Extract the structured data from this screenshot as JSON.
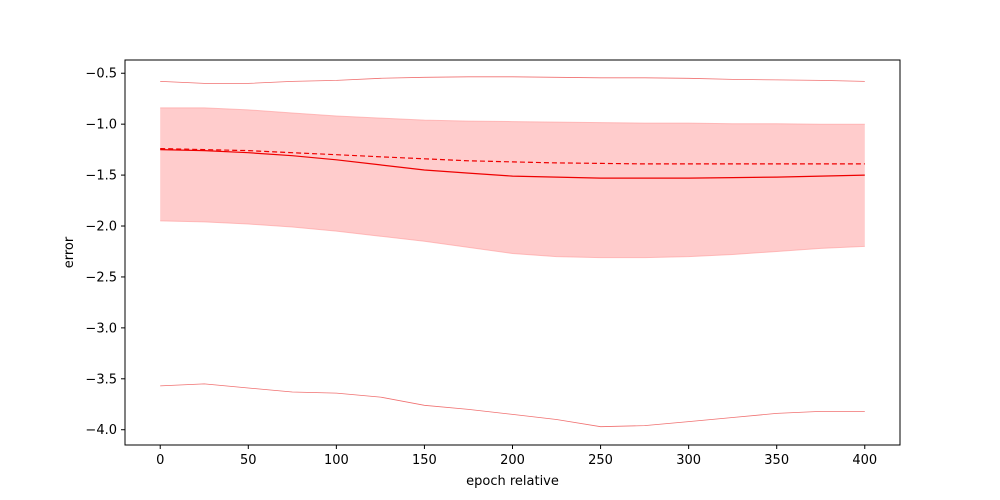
{
  "chart_data": {
    "type": "line",
    "xlabel": "epoch relative",
    "ylabel": "error",
    "xlim": [
      -20,
      420
    ],
    "ylim": [
      -4.15,
      -0.37
    ],
    "grid": false,
    "x_ticks": [
      0,
      50,
      100,
      150,
      200,
      250,
      300,
      350,
      400
    ],
    "y_ticks": [
      -4.0,
      -3.5,
      -3.0,
      -2.5,
      -2.0,
      -1.5,
      -1.0,
      -0.5
    ],
    "x_tick_labels": [
      "0",
      "50",
      "100",
      "150",
      "200",
      "250",
      "300",
      "350",
      "400"
    ],
    "y_tick_labels": [
      "−4.0",
      "−3.5",
      "−3.0",
      "−2.5",
      "−2.0",
      "−1.5",
      "−1.0",
      "−0.5"
    ],
    "x": [
      0,
      25,
      50,
      75,
      100,
      125,
      150,
      175,
      200,
      225,
      250,
      275,
      300,
      325,
      350,
      375,
      400
    ],
    "series": [
      {
        "role": "mean",
        "style": "solid",
        "color": "#ee0000",
        "values": [
          -1.25,
          -1.26,
          -1.28,
          -1.31,
          -1.35,
          -1.4,
          -1.45,
          -1.48,
          -1.51,
          -1.52,
          -1.53,
          -1.53,
          -1.53,
          -1.525,
          -1.52,
          -1.51,
          -1.5
        ]
      },
      {
        "role": "reference",
        "style": "dashed",
        "color": "#ee0000",
        "values": [
          -1.24,
          -1.25,
          -1.26,
          -1.28,
          -1.3,
          -1.32,
          -1.34,
          -1.36,
          -1.37,
          -1.38,
          -1.385,
          -1.39,
          -1.39,
          -1.39,
          -1.39,
          -1.39,
          -1.39
        ]
      },
      {
        "role": "band-upper",
        "color": "#ff9999",
        "values": [
          -0.84,
          -0.84,
          -0.86,
          -0.89,
          -0.92,
          -0.94,
          -0.96,
          -0.97,
          -0.975,
          -0.98,
          -0.985,
          -0.99,
          -0.99,
          -0.995,
          -0.995,
          -1.0,
          -1.0
        ]
      },
      {
        "role": "band-lower",
        "color": "#ff9999",
        "values": [
          -1.95,
          -1.96,
          -1.98,
          -2.01,
          -2.05,
          -2.1,
          -2.15,
          -2.21,
          -2.27,
          -2.3,
          -2.31,
          -2.31,
          -2.3,
          -2.28,
          -2.25,
          -2.22,
          -2.2
        ]
      },
      {
        "role": "max",
        "style": "thin",
        "color": "#f07070",
        "values": [
          -0.58,
          -0.6,
          -0.6,
          -0.58,
          -0.57,
          -0.55,
          -0.54,
          -0.535,
          -0.535,
          -0.54,
          -0.545,
          -0.545,
          -0.55,
          -0.56,
          -0.565,
          -0.57,
          -0.58
        ]
      },
      {
        "role": "min",
        "style": "thin",
        "color": "#f07070",
        "values": [
          -3.57,
          -3.55,
          -3.59,
          -3.63,
          -3.64,
          -3.68,
          -3.76,
          -3.8,
          -3.85,
          -3.9,
          -3.97,
          -3.96,
          -3.92,
          -3.88,
          -3.84,
          -3.82,
          -3.82
        ]
      }
    ],
    "band_fill_color": "#ffcccc"
  }
}
